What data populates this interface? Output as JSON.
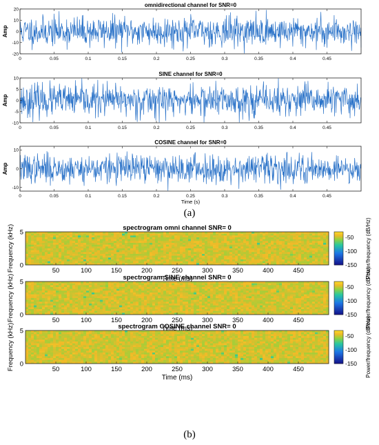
{
  "panel_labels": {
    "a": "(a)",
    "b": "(b)"
  },
  "colors": {
    "waveform": "#2a72c8",
    "waveform_dark": "#0d2b5a",
    "spectrogram_base": "#f2c230"
  },
  "chart_data": [
    {
      "type": "line",
      "title": "omnidirectional channel for SNR=0",
      "ylabel": "Amp",
      "xlabel": "",
      "xlim": [
        0,
        0.5
      ],
      "ylim": [
        -20,
        20
      ],
      "xticks": [
        "0",
        "0.05",
        "0.1",
        "0.15",
        "0.2",
        "0.25",
        "0.3",
        "0.35",
        "0.4",
        "0.45"
      ],
      "yticks": [
        "-20",
        "-10",
        "0",
        "10",
        "20"
      ],
      "noise": {
        "amplitude": 12,
        "seed": 11
      }
    },
    {
      "type": "line",
      "title": "SINE channel for SNR=0",
      "ylabel": "Amp",
      "xlabel": "",
      "xlim": [
        0,
        0.5
      ],
      "ylim": [
        -10,
        10
      ],
      "xticks": [
        "0",
        "0.05",
        "0.1",
        "0.15",
        "0.2",
        "0.25",
        "0.3",
        "0.35",
        "0.4",
        "0.45"
      ],
      "yticks": [
        "-10",
        "-5",
        "0",
        "5",
        "10"
      ],
      "noise": {
        "amplitude": 6.5,
        "seed": 23
      }
    },
    {
      "type": "line",
      "title": "COSINE channel for SNR=0",
      "ylabel": "Amp",
      "xlabel": "Time (s)",
      "xlim": [
        0,
        0.5
      ],
      "ylim": [
        -12,
        12
      ],
      "xticks": [
        "0",
        "0.05",
        "0.1",
        "0.15",
        "0.2",
        "0.25",
        "0.3",
        "0.35",
        "0.4",
        "0.45"
      ],
      "yticks": [
        "-10",
        "0",
        "10"
      ],
      "noise": {
        "amplitude": 7,
        "seed": 37
      }
    },
    {
      "type": "heatmap",
      "title": "spectrogram omni channel SNR= 0",
      "xlabel": "Time (ms)",
      "ylabel": "Frequency (kHz)",
      "xlim": [
        0,
        500
      ],
      "ylim": [
        0,
        5
      ],
      "xticks": [
        "50",
        "100",
        "150",
        "200",
        "250",
        "300",
        "350",
        "400",
        "450"
      ],
      "yticks": [
        "0",
        "5"
      ],
      "colorbar": {
        "label": "Power/frequency (dB/Hz)",
        "ticks": [
          "-50",
          "-100",
          "-150"
        ],
        "range": [
          -150,
          -30
        ]
      }
    },
    {
      "type": "heatmap",
      "title": "spectrogram SINE channel SNR= 0",
      "xlabel": "Time (ms)",
      "ylabel": "Frequency (kHz)",
      "xlim": [
        0,
        500
      ],
      "ylim": [
        0,
        5
      ],
      "xticks": [
        "50",
        "100",
        "150",
        "200",
        "250",
        "300",
        "350",
        "400",
        "450"
      ],
      "yticks": [
        "0",
        "5"
      ],
      "colorbar": {
        "label": "Power/frequency (dB/Hz)",
        "ticks": [
          "-50",
          "-100",
          "-150"
        ],
        "range": [
          -150,
          -30
        ]
      }
    },
    {
      "type": "heatmap",
      "title": "spectrogram COSINE channel SNR= 0",
      "xlabel": "Time (ms)",
      "ylabel": "Frequency (kHz)",
      "xlim": [
        0,
        500
      ],
      "ylim": [
        0,
        5
      ],
      "xticks": [
        "50",
        "100",
        "150",
        "200",
        "250",
        "300",
        "350",
        "400",
        "450"
      ],
      "yticks": [
        "0",
        "5"
      ],
      "colorbar": {
        "label": "Power/frequency (dB/Hz)",
        "ticks": [
          "-50",
          "-100",
          "-150"
        ],
        "range": [
          -150,
          -30
        ]
      }
    }
  ]
}
